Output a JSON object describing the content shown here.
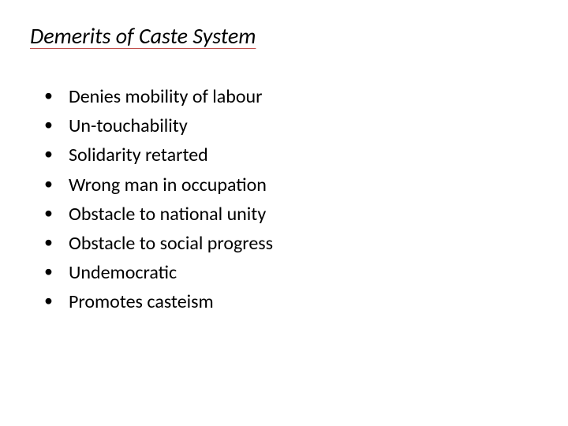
{
  "slide": {
    "title": "Demerits of Caste System",
    "title_fontsize": 28,
    "title_color": "#000000",
    "title_underline_color": "#c0504d",
    "title_font_style": "italic",
    "background_color": "#ffffff",
    "bullets": [
      "Denies mobility of labour",
      "Un-touchability",
      "Solidarity retarted",
      "Wrong man in occupation",
      "Obstacle to national unity",
      "Obstacle to social progress",
      "Undemocratic",
      "Promotes casteism"
    ],
    "bullet_fontsize": 24,
    "bullet_color": "#000000",
    "bullet_marker": "•"
  }
}
